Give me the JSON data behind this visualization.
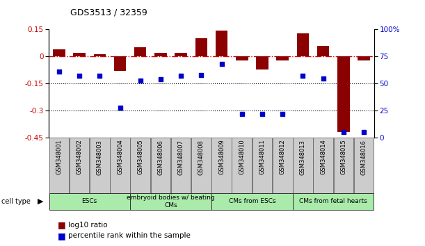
{
  "title": "GDS3513 / 32359",
  "samples": [
    "GSM348001",
    "GSM348002",
    "GSM348003",
    "GSM348004",
    "GSM348005",
    "GSM348006",
    "GSM348007",
    "GSM348008",
    "GSM348009",
    "GSM348010",
    "GSM348011",
    "GSM348012",
    "GSM348013",
    "GSM348014",
    "GSM348015",
    "GSM348016"
  ],
  "log10_ratio": [
    0.04,
    0.02,
    0.015,
    -0.08,
    0.05,
    0.02,
    0.02,
    0.1,
    0.145,
    -0.02,
    -0.07,
    -0.02,
    0.13,
    0.06,
    -0.42,
    -0.02
  ],
  "percentile_rank": [
    61,
    57,
    57,
    28,
    53,
    54,
    57,
    58,
    68,
    22,
    22,
    22,
    57,
    55,
    5,
    5
  ],
  "ylim_left": [
    -0.45,
    0.15
  ],
  "ylim_right": [
    0,
    100
  ],
  "yticks_left": [
    0.15,
    0.0,
    -0.15,
    -0.3,
    -0.45
  ],
  "yticks_right": [
    100,
    75,
    50,
    25,
    0
  ],
  "bar_color": "#8B0000",
  "dot_color": "#0000CC",
  "hline_color": "#CC0000",
  "cell_type_groups": [
    {
      "label": "ESCs",
      "start": 0,
      "end": 3,
      "color": "#AAEAAA"
    },
    {
      "label": "embryoid bodies w/ beating\nCMs",
      "start": 4,
      "end": 7,
      "color": "#AAEAAA"
    },
    {
      "label": "CMs from ESCs",
      "start": 8,
      "end": 11,
      "color": "#AAEAAA"
    },
    {
      "label": "CMs from fetal hearts",
      "start": 12,
      "end": 15,
      "color": "#AAEAAA"
    }
  ],
  "legend_bar_label": "log10 ratio",
  "legend_dot_label": "percentile rank within the sample",
  "grid_dotted_values": [
    -0.15,
    -0.3
  ],
  "bar_width": 0.6,
  "figsize": [
    6.11,
    3.54
  ],
  "dpi": 100
}
